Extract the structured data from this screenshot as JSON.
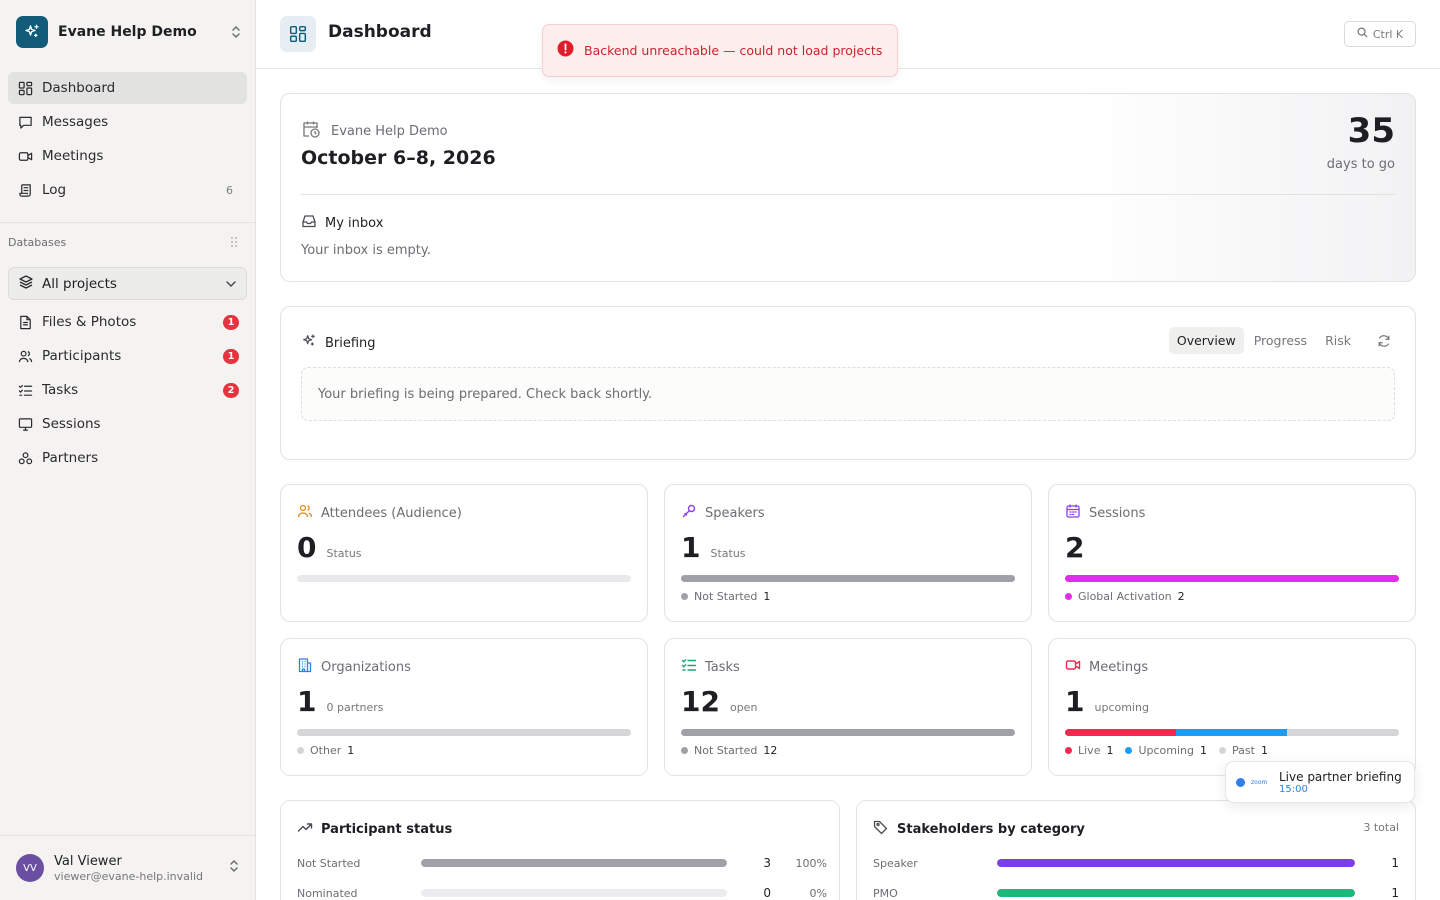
{
  "workspace": {
    "name": "Evane Help Demo"
  },
  "nav": {
    "dashboard": "Dashboard",
    "messages": "Messages",
    "meetings": "Meetings",
    "log": "Log",
    "log_count": "6"
  },
  "databases": {
    "label": "Databases",
    "project_select": "All projects",
    "items": [
      {
        "label": "Files & Photos",
        "badge": "1"
      },
      {
        "label": "Participants",
        "badge": "1"
      },
      {
        "label": "Tasks",
        "badge": "2"
      },
      {
        "label": "Sessions"
      },
      {
        "label": "Partners"
      }
    ]
  },
  "user": {
    "initials": "VV",
    "name": "Val Viewer",
    "email": "viewer@evane-help.invalid"
  },
  "header": {
    "title": "Dashboard",
    "shortcut": "Ctrl K"
  },
  "toast": {
    "message": "Backend unreachable — could not load projects"
  },
  "hero": {
    "org": "Evane Help Demo",
    "date": "October 6–8, 2026",
    "days": "35",
    "days_label": "days to go",
    "inbox_title": "My inbox",
    "inbox_empty": "Your inbox is empty."
  },
  "briefing": {
    "title": "Briefing",
    "tabs": [
      "Overview",
      "Progress",
      "Risk"
    ],
    "active_tab": "Overview",
    "message": "Your briefing is being prepared. Check back shortly."
  },
  "stats": {
    "attendees": {
      "title": "Attendees (Audience)",
      "value": "0",
      "sub": "Status"
    },
    "speakers": {
      "title": "Speakers",
      "value": "1",
      "sub": "Status",
      "legend": [
        {
          "label": "Not Started",
          "n": "1"
        }
      ]
    },
    "sessions": {
      "title": "Sessions",
      "value": "2",
      "legend": [
        {
          "label": "Global Activation",
          "n": "2"
        }
      ]
    },
    "organizations": {
      "title": "Organizations",
      "value": "1",
      "sub": "0 partners",
      "legend": [
        {
          "label": "Other",
          "n": "1"
        }
      ]
    },
    "tasks": {
      "title": "Tasks",
      "value": "12",
      "sub": "open",
      "legend": [
        {
          "label": "Not Started",
          "n": "12"
        }
      ]
    },
    "meetings": {
      "title": "Meetings",
      "value": "1",
      "sub": "upcoming",
      "legend": [
        {
          "label": "Live",
          "n": "1"
        },
        {
          "label": "Upcoming",
          "n": "1"
        },
        {
          "label": "Past",
          "n": "1"
        }
      ]
    }
  },
  "popup": {
    "zoom": "zoom",
    "title": "Live partner briefing",
    "time": "15:00"
  },
  "participant_status": {
    "title": "Participant status",
    "rows": [
      {
        "label": "Not Started",
        "n": "3",
        "pct": "100%",
        "fill": 1.0
      },
      {
        "label": "Nominated",
        "n": "0",
        "pct": "0%",
        "fill": 0
      }
    ]
  },
  "stakeholders": {
    "title": "Stakeholders by category",
    "total": "3 total",
    "rows": [
      {
        "label": "Speaker",
        "n": "1",
        "fill": 1.0
      },
      {
        "label": "PMO",
        "n": "1",
        "fill": 1.0
      }
    ]
  },
  "colors": {
    "brand": "#125c7a",
    "badge": "#e5333f",
    "gray_bar": "#a0a0a8",
    "magenta": "#e22ce6",
    "live": "#f0294f",
    "upcoming": "#1f9cf0",
    "past": "#d5d5d8",
    "purple": "#7b3fe8",
    "green": "#1fb87a"
  }
}
